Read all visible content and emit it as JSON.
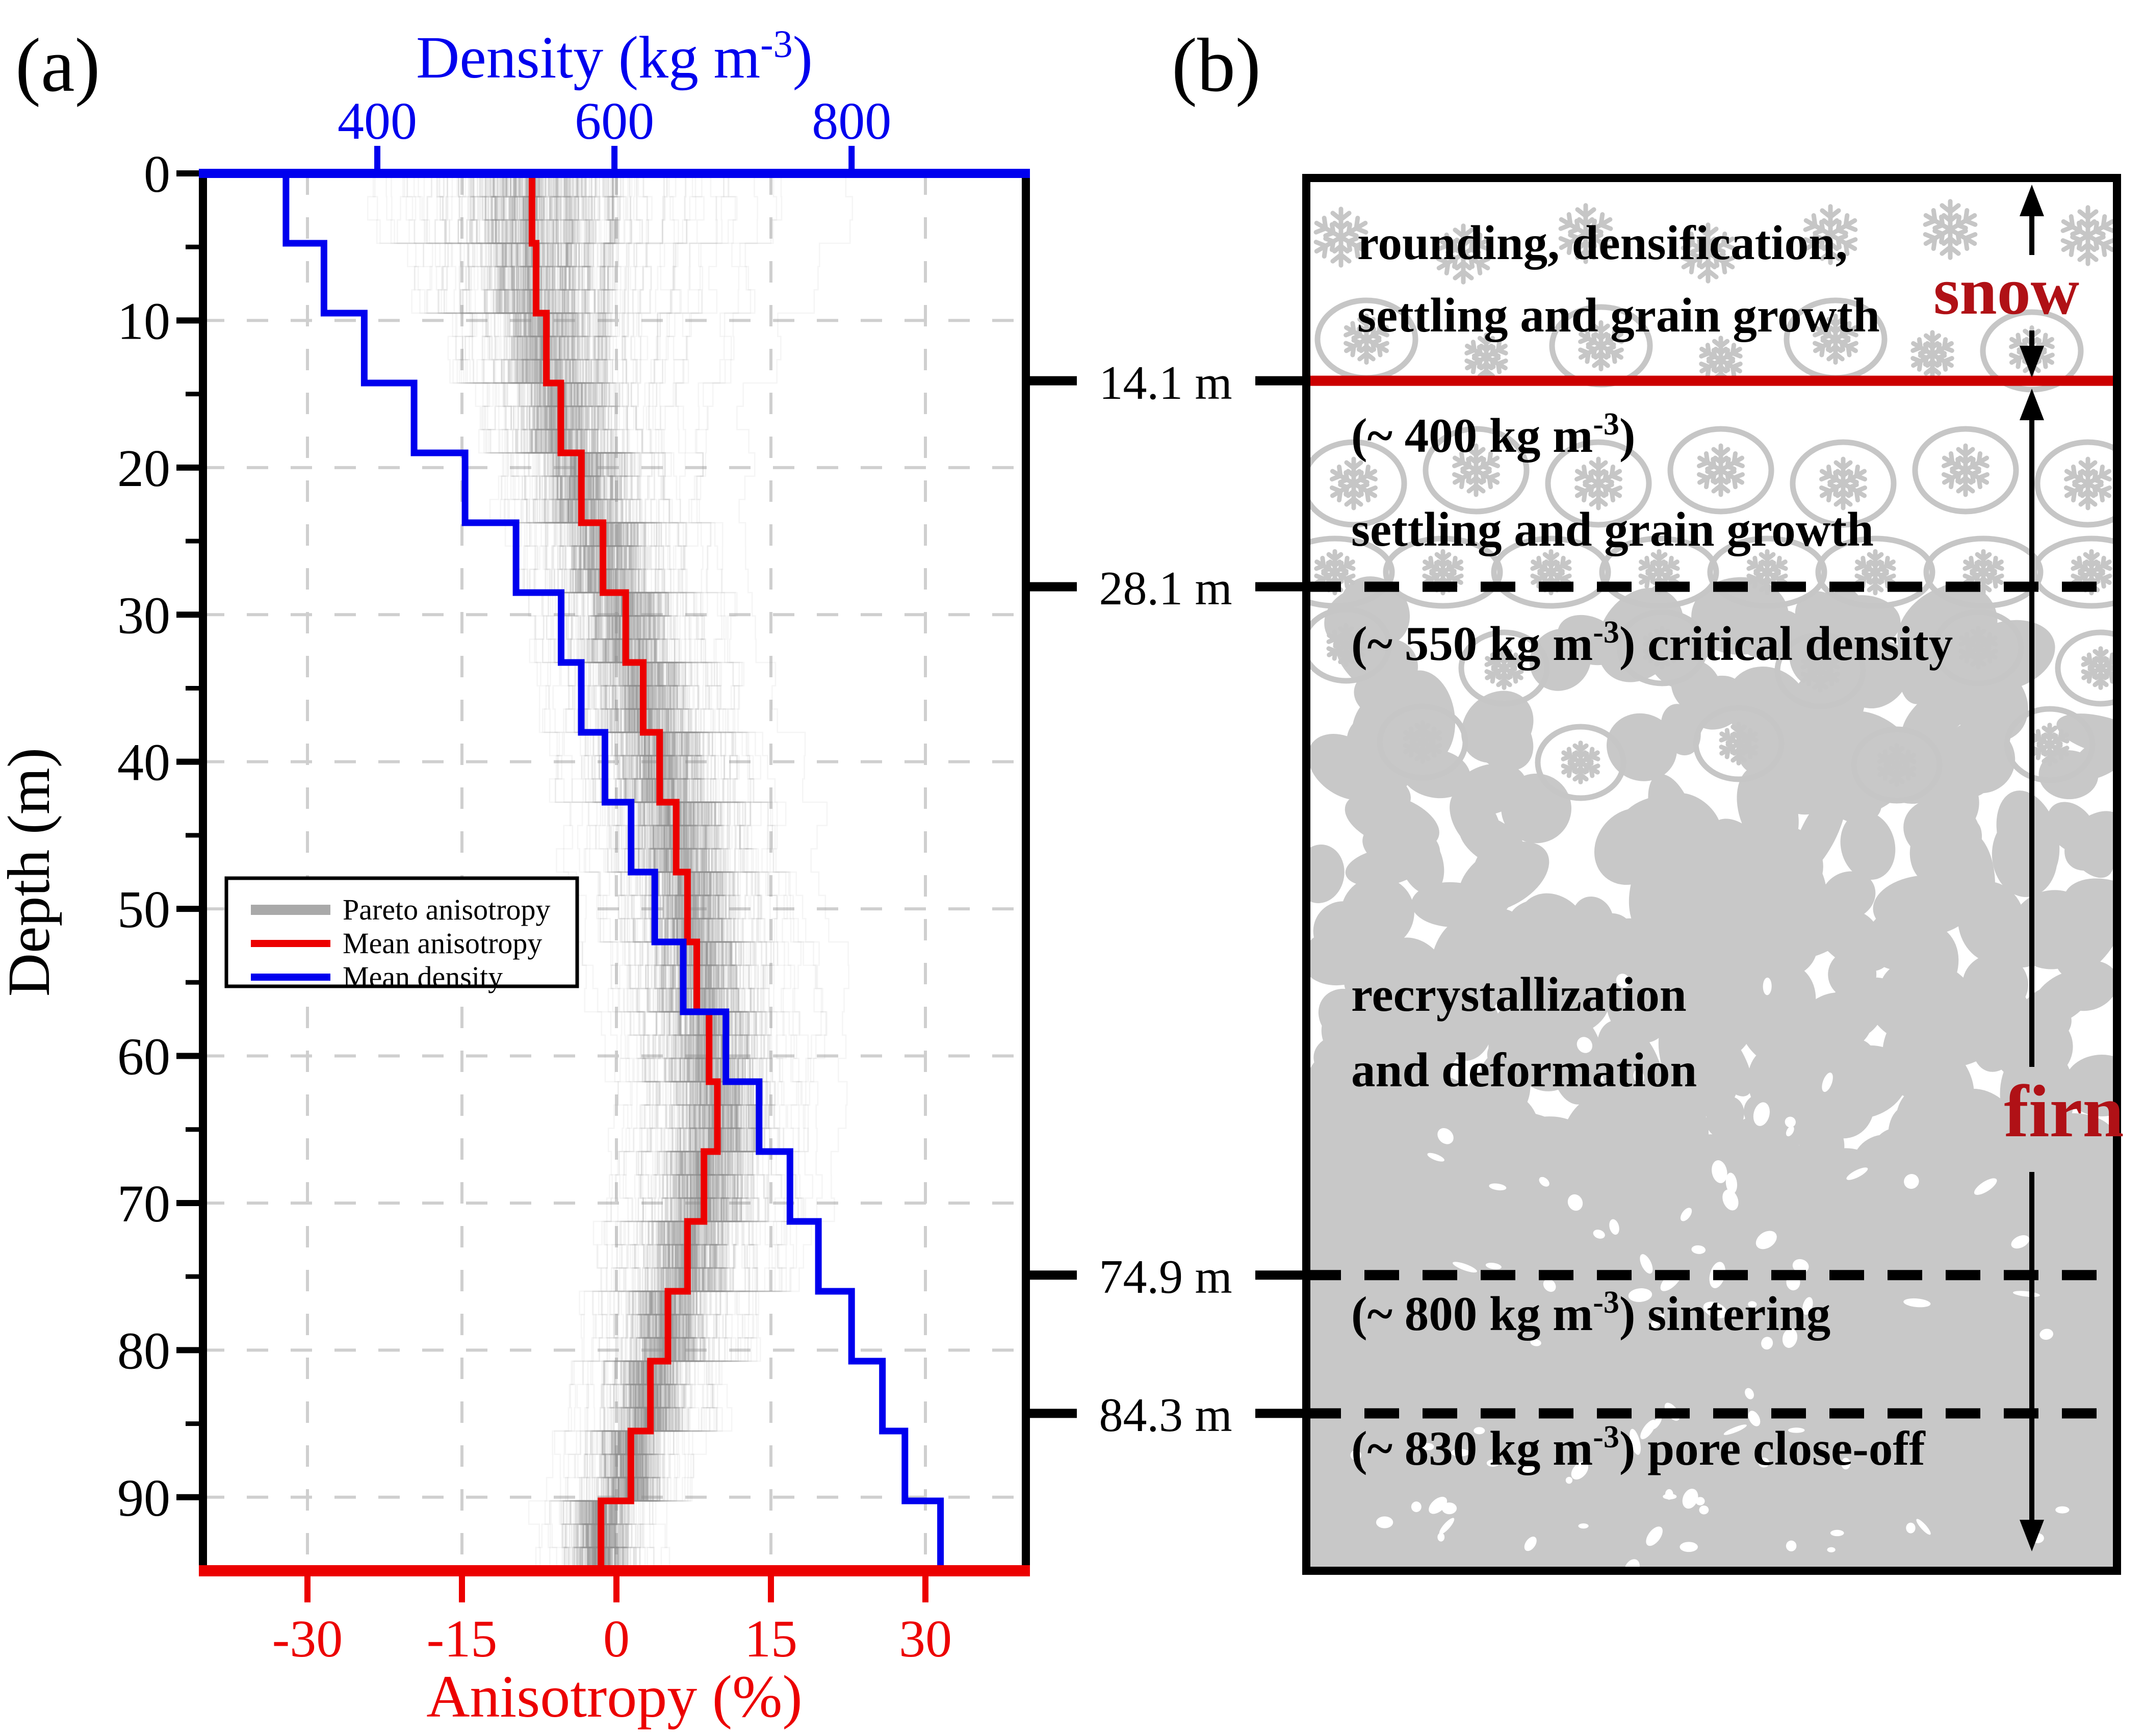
{
  "figure": {
    "panel_a_tag": "(a)",
    "panel_b_tag": "(b)"
  },
  "colors": {
    "density_blue": "#0000ee",
    "anisotropy_red": "#ec0000",
    "label_dark_red": "#b01116",
    "boundary_red": "#cc0000",
    "pareto_gray": "#8f8f8f",
    "flake_gray": "#c6c6c6",
    "grain_gray": "#c8c8c8",
    "grid_gray": "#cfcfcf",
    "black": "#000000"
  },
  "chart_data": {
    "type": "line",
    "subtype": "stepped-depth-profile",
    "ylabel": "Depth (m)",
    "ylim": [
      0,
      95
    ],
    "y_ticks_major": [
      0,
      10,
      20,
      30,
      40,
      50,
      60,
      70,
      80,
      90
    ],
    "y_ticks_minor": [
      5,
      15,
      25,
      35,
      45,
      55,
      65,
      75,
      85
    ],
    "top_axis": {
      "label_pre": "Density (kg m",
      "label_sup": "-3",
      "label_post": ")",
      "ticks": [
        400,
        600,
        800
      ],
      "lim": [
        253,
        955
      ]
    },
    "bottom_axis": {
      "label": "Anisotropy (%)",
      "ticks": [
        -30,
        -15,
        0,
        15,
        30
      ],
      "lim": [
        -40,
        40
      ]
    },
    "grid": {
      "horizontal_depths": [
        10,
        20,
        30,
        40,
        50,
        60,
        70,
        80,
        90
      ],
      "vertical_anisotropy": [
        -30,
        -15,
        0,
        15,
        30
      ]
    },
    "depth_bin_edges": [
      0,
      4.75,
      9.5,
      14.25,
      19,
      23.75,
      28.5,
      33.25,
      38,
      42.75,
      47.5,
      52.25,
      57,
      61.75,
      66.5,
      71.25,
      76,
      80.75,
      85.5,
      90.25,
      95
    ],
    "series": [
      {
        "name": "Pareto anisotropy",
        "axis": "anisotropy",
        "style": "ensemble-cloud",
        "band_lo": [
          -28,
          -24,
          -19,
          -16,
          -14,
          -12,
          -11,
          -10,
          -9,
          -7,
          -6,
          -5,
          -4,
          -3,
          -3,
          -4,
          -5,
          -6,
          -7,
          -8
        ],
        "band_hi": [
          24,
          20,
          16,
          13,
          13,
          14,
          15,
          17,
          19,
          21,
          22,
          23,
          23,
          23,
          22,
          20,
          16,
          12,
          8,
          5
        ],
        "n_lines": 320
      },
      {
        "name": "Mean anisotropy",
        "axis": "anisotropy",
        "values": [
          -8.2,
          -7.8,
          -6.8,
          -5.4,
          -3.4,
          -1.3,
          0.9,
          2.6,
          4.2,
          5.8,
          6.9,
          7.8,
          9.0,
          9.8,
          8.5,
          6.9,
          5.0,
          3.3,
          1.4,
          -1.5
        ]
      },
      {
        "name": "Mean density",
        "axis": "density",
        "values": [
          323,
          355,
          389,
          431,
          474,
          517,
          555,
          572,
          592,
          614,
          634,
          658,
          694,
          722,
          748,
          772,
          800,
          826,
          845,
          875
        ]
      }
    ],
    "legend_position": "center-left"
  },
  "panel_b": {
    "depth_markers": [
      {
        "depth": 14.1,
        "label": "14.1 m",
        "line": "solid-red"
      },
      {
        "depth": 28.1,
        "label": "28.1 m",
        "line": "dashed-black"
      },
      {
        "depth": 74.9,
        "label": "74.9 m",
        "line": "dashed-black"
      },
      {
        "depth": 84.3,
        "label": "84.3 m",
        "line": "dashed-black"
      }
    ],
    "zones": [
      {
        "id": "snow-zone",
        "lines": [
          {
            "pre": "rounding, densification,"
          },
          {
            "pre": "settling and grain growth"
          }
        ]
      },
      {
        "id": "settling-zone",
        "lines": [
          {
            "pre": "(~ 400 kg m",
            "sup": "-3",
            "post": ")"
          },
          {
            "pre": "settling and grain growth"
          }
        ]
      },
      {
        "id": "critical-density-zone",
        "lines": [
          {
            "pre": "(~ 550 kg m",
            "sup": "-3",
            "post": ") critical density"
          }
        ]
      },
      {
        "id": "recrystallization-zone",
        "lines": [
          {
            "pre": "recrystallization"
          },
          {
            "pre": "and deformation"
          }
        ]
      },
      {
        "id": "sintering-zone",
        "lines": [
          {
            "pre": "(~ 800 kg m",
            "sup": "-3",
            "post": ") sintering"
          }
        ]
      },
      {
        "id": "pore-close-off-zone",
        "lines": [
          {
            "pre": "(~ 830 kg m",
            "sup": "-3",
            "post": ") pore close-off"
          }
        ]
      }
    ],
    "side_labels": [
      {
        "text": "snow"
      },
      {
        "text": "firn"
      }
    ]
  }
}
